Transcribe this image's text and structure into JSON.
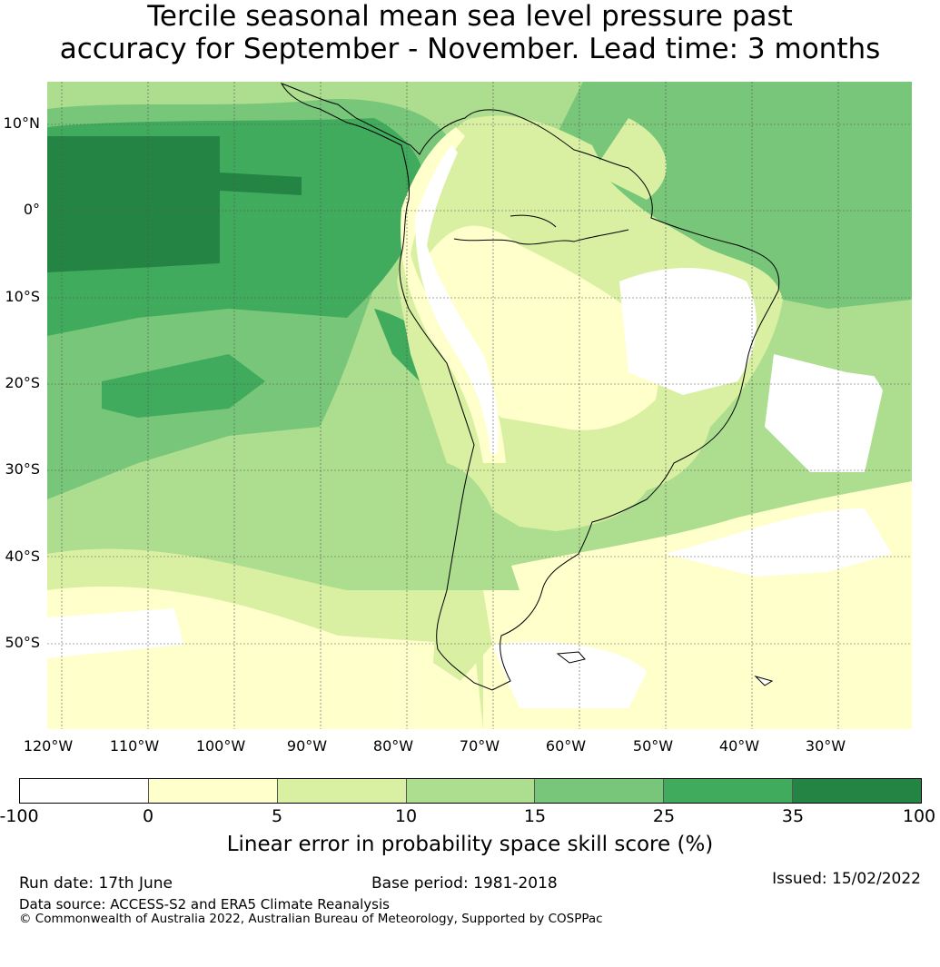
{
  "title": {
    "line1": "Tercile seasonal mean sea level pressure past",
    "line2": "accuracy for September - November. Lead time: 3 months"
  },
  "map": {
    "lat_labels": [
      "10°N",
      "0°",
      "10°S",
      "20°S",
      "30°S",
      "40°S",
      "50°S"
    ],
    "lon_labels": [
      "120°W",
      "110°W",
      "100°W",
      "90°W",
      "80°W",
      "70°W",
      "60°W",
      "50°W",
      "40°W",
      "30°W"
    ]
  },
  "legend": {
    "bins": [
      {
        "range": "-100 to 0",
        "color": "#ffffff"
      },
      {
        "range": "0 to 5",
        "color": "#ffffcc"
      },
      {
        "range": "5 to 10",
        "color": "#d9f0a3"
      },
      {
        "range": "10 to 15",
        "color": "#addd8e"
      },
      {
        "range": "15 to 25",
        "color": "#78c679"
      },
      {
        "range": "25 to 35",
        "color": "#41ab5d"
      },
      {
        "range": "35 to 100",
        "color": "#238443"
      }
    ],
    "ticks": [
      "-100",
      "0",
      "5",
      "10",
      "15",
      "25",
      "35",
      "100"
    ],
    "label": "Linear error in probability space skill score (%)"
  },
  "footer": {
    "run_date": "Run date: 17th June",
    "base_period": "Base period: 1981-2018",
    "issued": "Issued: 15/02/2022",
    "data_source": "Data source: ACCESS-S2 and ERA5 Climate Reanalysis",
    "copyright": "© Commonwealth of Australia 2022, Australian Bureau of Meteorology, Supported by COSPPac"
  }
}
